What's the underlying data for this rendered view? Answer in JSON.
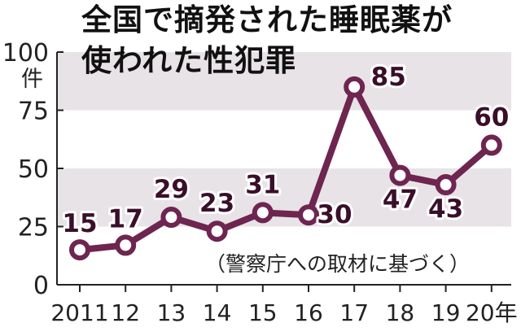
{
  "title_lines": [
    "全国で摘発された睡眠薬が",
    "使われた性犯罪"
  ],
  "unit": "件",
  "source_note": "（警察庁への取材に基づく）",
  "colors": {
    "line": "#6e2550",
    "band": "#e8e3e6",
    "axis": "#222222",
    "label": "#3a0f2a"
  },
  "chart_data": {
    "type": "line",
    "title": "全国で摘発された睡眠薬が使われた性犯罪",
    "categories": [
      "2011",
      "12",
      "13",
      "14",
      "15",
      "16",
      "17",
      "18",
      "19",
      "20年"
    ],
    "values": [
      15,
      17,
      29,
      23,
      31,
      30,
      85,
      47,
      43,
      60
    ],
    "data_labels": [
      "15",
      "17",
      "29",
      "23",
      "31",
      "30",
      "85",
      "47",
      "43",
      "60"
    ],
    "ylabel": "件",
    "ylim": [
      0,
      100
    ],
    "yticks": [
      0,
      25,
      50,
      75,
      100
    ],
    "ytick_labels": [
      "0",
      "25",
      "50",
      "75",
      "100"
    ],
    "grid": "alternating horizontal bands",
    "legend": "none"
  }
}
